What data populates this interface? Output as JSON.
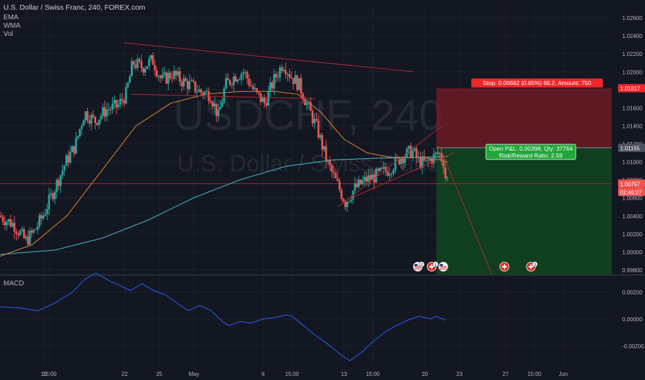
{
  "header": {
    "symbol_line": "U.S. Dollar / Swiss Franc, 240, FOREX.com",
    "indicators": [
      "EMA",
      "WMA",
      "Vol"
    ]
  },
  "watermark": {
    "ticker": "USDCHF, 240",
    "name": "U.S. Dollar / Swiss Franc"
  },
  "macd_label": "MACD",
  "price_axis": {
    "ticks": [
      "1.02600",
      "1.02400",
      "1.02200",
      "1.02000",
      "1.01800",
      "1.01600",
      "1.01400",
      "1.01200",
      "1.01000",
      "1.00800",
      "1.00600",
      "1.00400",
      "1.00200",
      "1.00000",
      "0.99800"
    ],
    "tick_values": [
      1.026,
      1.024,
      1.022,
      1.02,
      1.018,
      1.016,
      1.014,
      1.012,
      1.01,
      1.008,
      1.006,
      1.004,
      1.002,
      1.0,
      0.998
    ],
    "range": [
      0.9975,
      1.0275
    ]
  },
  "macd_axis": {
    "ticks": [
      "0.00200",
      "0.00000",
      "-0.00200"
    ],
    "tick_values": [
      0.002,
      0.0,
      -0.002
    ],
    "range": [
      -0.0035,
      0.0032
    ]
  },
  "time_axis": {
    "labels": [
      {
        "t": "15",
        "x": 15
      },
      {
        "t": "15:00",
        "x": 15.5
      },
      {
        "t": "22",
        "x": 22
      },
      {
        "t": "25",
        "x": 25
      },
      {
        "t": "May",
        "x": 28
      },
      {
        "t": "6",
        "x": 34
      },
      {
        "t": "15:00",
        "x": 36.5
      },
      {
        "t": "13",
        "x": 41
      },
      {
        "t": "15:00",
        "x": 43.5
      },
      {
        "t": "20",
        "x": 48
      },
      {
        "t": "23",
        "x": 51
      },
      {
        "t": "27",
        "x": 55
      },
      {
        "t": "15:00",
        "x": 57.5
      },
      {
        "t": "Jun",
        "x": 60
      }
    ],
    "range": [
      11.2,
      64.2
    ]
  },
  "badges": {
    "stop": "Stop: 0.00662 (0.65%) 66.2, Amount: 750",
    "stop_price": "1.01817",
    "entry_price": "1.01155",
    "current_price": "1.00757",
    "countdown": "02:49:27",
    "pnl_line1": "Open P&L: 0.00398, Qty: 37764",
    "pnl_line2": "Risk/Reward Ratio: 2.59"
  },
  "events": [
    {
      "x": 47.4,
      "icon": "us-flag-icon",
      "count": "2"
    },
    {
      "x": 48.6,
      "icon": "swiss-flag-icon",
      "count": "1"
    },
    {
      "x": 49.6,
      "icon": "us-flag-icon",
      "count": ""
    },
    {
      "x": 54.9,
      "icon": "swiss-flag-icon",
      "count": ""
    },
    {
      "x": 57.2,
      "icon": "swiss-flag-icon",
      "count": "3"
    }
  ],
  "colors": {
    "background": "#131722",
    "grid": "#1e222d",
    "up": "#26a69a",
    "down": "#ef5350",
    "ema": "#e8872c",
    "wma": "#3fa7b4",
    "macd": "#2962ff",
    "trend": "#b22833",
    "stop_zone": "#7a1b24",
    "target_zone": "#0f4a1f",
    "pnl": "#20a73a",
    "stop": "#f0262a"
  },
  "chart_data": {
    "type": "candlestick",
    "x_unit": "day of May 2019 (April days as negative offsets)",
    "ohlc_waypoints": [
      [
        11.2,
        1.004
      ],
      [
        12.5,
        1.003
      ],
      [
        13.5,
        1.0012
      ],
      [
        14.2,
        1.0022
      ],
      [
        15.0,
        1.004
      ],
      [
        16.0,
        1.007
      ],
      [
        17.0,
        1.01
      ],
      [
        17.8,
        1.0118
      ],
      [
        18.6,
        1.0155
      ],
      [
        19.5,
        1.0145
      ],
      [
        20.5,
        1.0158
      ],
      [
        21.5,
        1.0162
      ],
      [
        22.2,
        1.0175
      ],
      [
        22.8,
        1.021
      ],
      [
        23.6,
        1.0205
      ],
      [
        24.5,
        1.0213
      ],
      [
        25.3,
        1.019
      ],
      [
        26.2,
        1.0198
      ],
      [
        27.0,
        1.019
      ],
      [
        27.8,
        1.0185
      ],
      [
        28.6,
        1.0178
      ],
      [
        29.5,
        1.0175
      ],
      [
        30.2,
        1.015
      ],
      [
        30.8,
        1.0185
      ],
      [
        31.6,
        1.0195
      ],
      [
        32.4,
        1.02
      ],
      [
        33.3,
        1.0178
      ],
      [
        34.2,
        1.0165
      ],
      [
        35.0,
        1.019
      ],
      [
        35.8,
        1.021
      ],
      [
        36.5,
        1.0195
      ],
      [
        37.2,
        1.0185
      ],
      [
        38.0,
        1.016
      ],
      [
        38.8,
        1.0135
      ],
      [
        39.6,
        1.01
      ],
      [
        40.5,
        1.0075
      ],
      [
        41.2,
        1.0055
      ],
      [
        42.0,
        1.007
      ],
      [
        43.0,
        1.008
      ],
      [
        44.0,
        1.0085
      ],
      [
        45.0,
        1.0092
      ],
      [
        46.0,
        1.0105
      ],
      [
        47.0,
        1.0112
      ],
      [
        47.6,
        1.01
      ],
      [
        48.2,
        1.0098
      ],
      [
        48.8,
        1.0105
      ],
      [
        49.3,
        1.011
      ],
      [
        49.7,
        1.01
      ],
      [
        49.9,
        1.008
      ]
    ],
    "ema": [
      [
        11.2,
        0.9995
      ],
      [
        14.0,
        1.0008
      ],
      [
        17.0,
        1.004
      ],
      [
        20.0,
        1.009
      ],
      [
        23.0,
        1.014
      ],
      [
        26.0,
        1.0165
      ],
      [
        29.0,
        1.0175
      ],
      [
        32.0,
        1.0178
      ],
      [
        35.0,
        1.0178
      ],
      [
        37.0,
        1.0175
      ],
      [
        39.0,
        1.0155
      ],
      [
        41.0,
        1.0125
      ],
      [
        43.0,
        1.011
      ],
      [
        45.0,
        1.0105
      ],
      [
        47.0,
        1.0105
      ],
      [
        49.0,
        1.0103
      ],
      [
        50.0,
        1.01
      ]
    ],
    "wma": [
      [
        11.2,
        0.9997
      ],
      [
        16.0,
        1.0002
      ],
      [
        20.0,
        1.0015
      ],
      [
        24.0,
        1.0035
      ],
      [
        28.0,
        1.006
      ],
      [
        32.0,
        1.008
      ],
      [
        36.0,
        1.0095
      ],
      [
        40.0,
        1.0102
      ],
      [
        44.0,
        1.0104
      ],
      [
        48.0,
        1.0105
      ],
      [
        50.0,
        1.0106
      ]
    ],
    "macd": [
      [
        11.2,
        0.0009
      ],
      [
        13.0,
        0.0008
      ],
      [
        14.5,
        0.0006
      ],
      [
        16.0,
        0.0012
      ],
      [
        17.5,
        0.002
      ],
      [
        18.5,
        0.0029
      ],
      [
        19.5,
        0.0034
      ],
      [
        20.5,
        0.0029
      ],
      [
        21.5,
        0.0025
      ],
      [
        22.5,
        0.0021
      ],
      [
        23.5,
        0.0026
      ],
      [
        24.5,
        0.0021
      ],
      [
        25.5,
        0.0018
      ],
      [
        26.5,
        0.0012
      ],
      [
        27.5,
        0.0006
      ],
      [
        28.5,
        0.001
      ],
      [
        29.5,
        0.0006
      ],
      [
        30.5,
        -0.0002
      ],
      [
        31.0,
        -0.0005
      ],
      [
        32.0,
        -0.0002
      ],
      [
        33.0,
        -0.0003
      ],
      [
        34.0,
        0.0
      ],
      [
        35.0,
        0.0001
      ],
      [
        36.0,
        0.0003
      ],
      [
        36.5,
        0.0002
      ],
      [
        37.5,
        -0.0005
      ],
      [
        38.5,
        -0.0012
      ],
      [
        39.5,
        -0.0018
      ],
      [
        40.5,
        -0.0025
      ],
      [
        41.5,
        -0.0031
      ],
      [
        42.5,
        -0.0025
      ],
      [
        43.5,
        -0.0017
      ],
      [
        44.5,
        -0.001
      ],
      [
        45.5,
        -0.0005
      ],
      [
        46.5,
        -0.0001
      ],
      [
        47.5,
        0.0002
      ],
      [
        48.5,
        0.0
      ],
      [
        49.0,
        0.0002
      ],
      [
        49.8,
        -0.0001
      ]
    ],
    "trend_lines": [
      [
        [
          22.0,
          1.0232
        ],
        [
          47.0,
          1.02
        ]
      ],
      [
        [
          22.5,
          1.0175
        ],
        [
          38.5,
          1.017
        ]
      ],
      [
        [
          40.5,
          1.005
        ],
        [
          49.5,
          1.014
        ]
      ],
      [
        [
          40.8,
          1.0055
        ],
        [
          50.5,
          1.011
        ]
      ],
      [
        [
          49.3,
          1.0117
        ],
        [
          53.8,
          0.9975
        ]
      ]
    ],
    "horizontal_line": 1.00757,
    "position": {
      "entry": 1.01155,
      "stop": 1.01817,
      "target": 0.9975,
      "start_x": 49.0,
      "end_x": 64.2
    }
  }
}
